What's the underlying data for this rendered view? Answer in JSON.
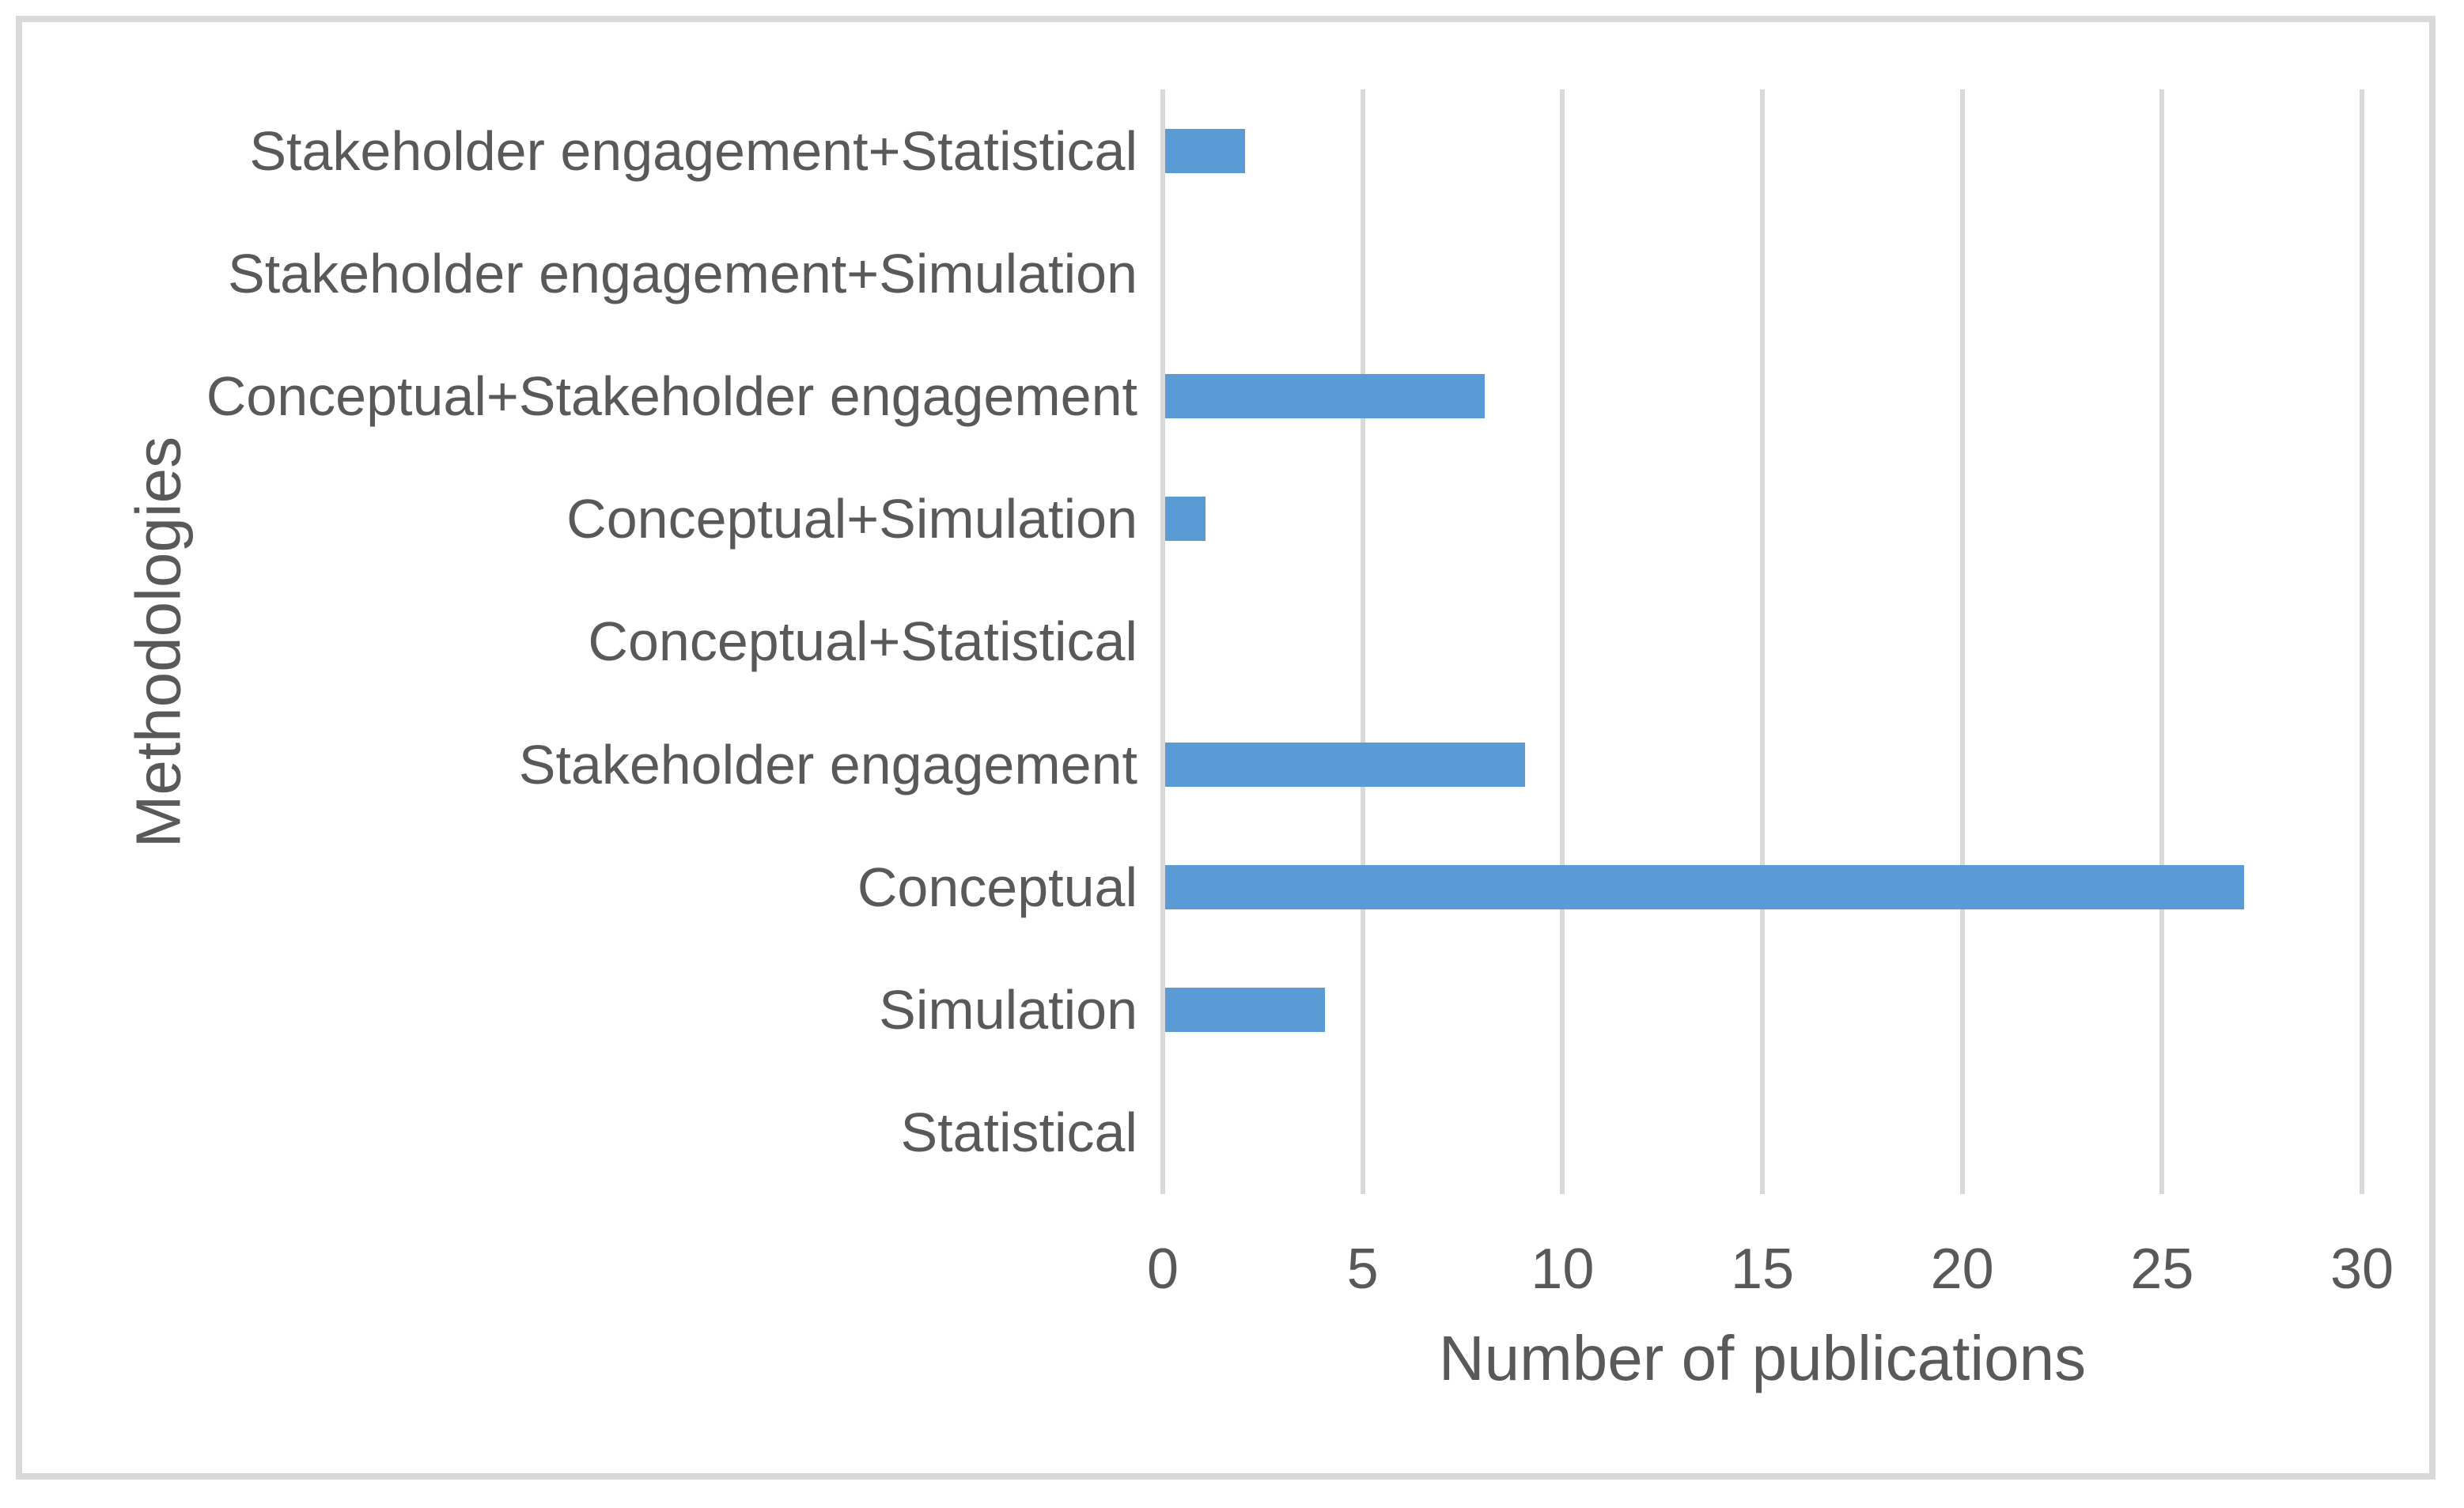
{
  "figure": {
    "background_color": "#ffffff",
    "border_color": "#d9d9d9"
  },
  "chart_data": {
    "type": "bar",
    "orientation": "horizontal",
    "title": "",
    "xlabel": "Number of publications",
    "ylabel": "Methodologies",
    "categories": [
      "Stakeholder engagement+Statistical",
      "Stakeholder engagement+Simulation",
      "Conceptual+Stakeholder engagement",
      "Conceptual+Simulation",
      "Conceptual+Statistical",
      "Stakeholder engagement",
      "Conceptual",
      "Simulation",
      "Statistical"
    ],
    "values": [
      2,
      0,
      8,
      1,
      0,
      9,
      27,
      4,
      0
    ],
    "xlim": [
      0,
      30
    ],
    "xticks": [
      0,
      5,
      10,
      15,
      20,
      25,
      30
    ],
    "grid": true,
    "legend": false,
    "bar_color": "#5b9bd5",
    "gridline_color": "#d9d9d9",
    "text_color": "#595959"
  }
}
